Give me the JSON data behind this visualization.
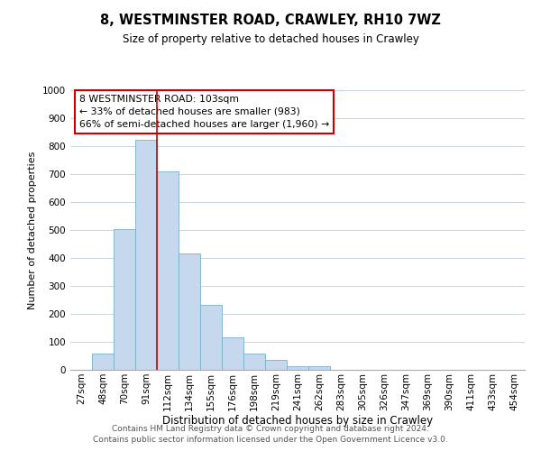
{
  "title": "8, WESTMINSTER ROAD, CRAWLEY, RH10 7WZ",
  "subtitle": "Size of property relative to detached houses in Crawley",
  "xlabel": "Distribution of detached houses by size in Crawley",
  "ylabel": "Number of detached properties",
  "bar_labels": [
    "27sqm",
    "48sqm",
    "70sqm",
    "91sqm",
    "112sqm",
    "134sqm",
    "155sqm",
    "176sqm",
    "198sqm",
    "219sqm",
    "241sqm",
    "262sqm",
    "283sqm",
    "305sqm",
    "326sqm",
    "347sqm",
    "369sqm",
    "390sqm",
    "411sqm",
    "433sqm",
    "454sqm"
  ],
  "bar_values": [
    0,
    57,
    503,
    822,
    709,
    417,
    232,
    117,
    57,
    35,
    13,
    13,
    0,
    0,
    0,
    0,
    0,
    0,
    0,
    0,
    0
  ],
  "bar_color": "#c5d8ed",
  "bar_edge_color": "#7aafc8",
  "ylim": [
    0,
    1000
  ],
  "yticks": [
    0,
    100,
    200,
    300,
    400,
    500,
    600,
    700,
    800,
    900,
    1000
  ],
  "annotation_text": "8 WESTMINSTER ROAD: 103sqm\n← 33% of detached houses are smaller (983)\n66% of semi-detached houses are larger (1,960) →",
  "annotation_box_color": "#ffffff",
  "annotation_box_edge": "#cc0000",
  "property_line_x": 3.5,
  "property_line_color": "#cc0000",
  "footer_line1": "Contains HM Land Registry data © Crown copyright and database right 2024.",
  "footer_line2": "Contains public sector information licensed under the Open Government Licence v3.0.",
  "background_color": "#ffffff",
  "grid_color": "#c8d4e4",
  "title_fontsize": 10.5,
  "subtitle_fontsize": 8.5,
  "ylabel_fontsize": 8,
  "xlabel_fontsize": 8.5,
  "tick_fontsize": 7.5,
  "annotation_fontsize": 7.8,
  "footer_fontsize": 6.5
}
